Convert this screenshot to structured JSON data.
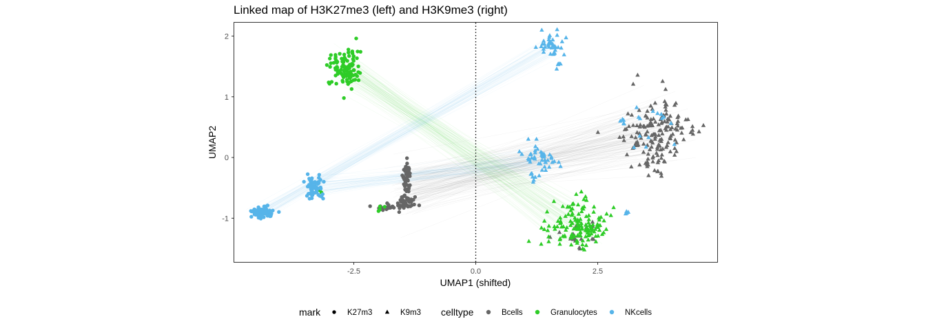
{
  "chart_data": {
    "type": "scatter",
    "title": "Linked map of H3K27me3 (left) and H3K9me3 (right)",
    "xlabel": "UMAP1 (shifted)",
    "ylabel": "UMAP2",
    "xlim": [
      -4.95,
      4.95
    ],
    "ylim": [
      -1.72,
      2.22
    ],
    "x_ticks": [
      -2.5,
      0.0,
      2.5
    ],
    "x_tick_labels": [
      "-2.5",
      "0.0",
      "2.5"
    ],
    "y_ticks": [
      -1,
      0,
      1,
      2
    ],
    "y_tick_labels": [
      "-1",
      "0",
      "1",
      "2"
    ],
    "vline": {
      "x": 0,
      "style": "dotted"
    },
    "grid": false,
    "legend_position": "bottom",
    "legends": [
      {
        "title": "mark",
        "entries": [
          {
            "label": "K27m3",
            "shape": "circle"
          },
          {
            "label": "K9m3",
            "shape": "triangle"
          }
        ]
      },
      {
        "title": "celltype",
        "entries": [
          {
            "label": "Bcells",
            "color": "#666666"
          },
          {
            "label": "Granulocytes",
            "color": "#2ecc27"
          },
          {
            "label": "NKcells",
            "color": "#56b4e9"
          }
        ]
      }
    ],
    "colors": {
      "Bcells": "#666666",
      "Granulocytes": "#2ecc27",
      "NKcells": "#56b4e9"
    },
    "series": [
      {
        "celltype": "Bcells",
        "mark": "K27m3",
        "clusters": [
          {
            "center": [
              -1.42,
              -0.35
            ],
            "spread": [
              0.06,
              0.14
            ],
            "n": 45
          },
          {
            "center": [
              -1.45,
              -0.75
            ],
            "spread": [
              0.11,
              0.06
            ],
            "n": 45
          },
          {
            "center": [
              -1.85,
              -0.82
            ],
            "spread": [
              0.12,
              0.03
            ],
            "n": 20
          }
        ]
      },
      {
        "celltype": "Bcells",
        "mark": "K9m3",
        "clusters": [
          {
            "center": [
              3.75,
              0.42
            ],
            "spread": [
              0.34,
              0.28
            ],
            "n": 160
          },
          {
            "center": [
              3.5,
              -0.12
            ],
            "spread": [
              0.12,
              0.05
            ],
            "n": 8
          },
          {
            "center": [
              2.05,
              -1.28
            ],
            "spread": [
              0.22,
              0.12
            ],
            "n": 18
          }
        ]
      },
      {
        "celltype": "Granulocytes",
        "mark": "K27m3",
        "clusters": [
          {
            "center": [
              -2.65,
              1.45
            ],
            "spread": [
              0.15,
              0.15
            ],
            "n": 110
          },
          {
            "center": [
              -1.95,
              -0.82
            ],
            "spread": [
              0.04,
              0.04
            ],
            "n": 4
          },
          {
            "center": [
              -3.18,
              -0.55
            ],
            "spread": [
              0.04,
              0.03
            ],
            "n": 3
          }
        ]
      },
      {
        "celltype": "Granulocytes",
        "mark": "K9m3",
        "clusters": [
          {
            "center": [
              2.05,
              -1.15
            ],
            "spread": [
              0.32,
              0.2
            ],
            "n": 140
          },
          {
            "center": [
              2.15,
              -0.75
            ],
            "spread": [
              0.08,
              0.08
            ],
            "n": 6
          }
        ]
      },
      {
        "celltype": "NKcells",
        "mark": "K27m3",
        "clusters": [
          {
            "center": [
              -4.38,
              -0.9
            ],
            "spread": [
              0.11,
              0.05
            ],
            "n": 75
          },
          {
            "center": [
              -3.32,
              -0.5
            ],
            "spread": [
              0.1,
              0.09
            ],
            "n": 55
          }
        ]
      },
      {
        "celltype": "NKcells",
        "mark": "K9m3",
        "clusters": [
          {
            "center": [
              1.55,
              1.85
            ],
            "spread": [
              0.12,
              0.09
            ],
            "n": 40
          },
          {
            "center": [
              1.7,
              1.55
            ],
            "spread": [
              0.03,
              0.05
            ],
            "n": 5
          },
          {
            "center": [
              1.32,
              -0.05
            ],
            "spread": [
              0.16,
              0.14
            ],
            "n": 50
          },
          {
            "center": [
              3.72,
              0.5
            ],
            "spread": [
              0.25,
              0.22
            ],
            "n": 14
          },
          {
            "center": [
              2.92,
              0.58
            ],
            "spread": [
              0.1,
              0.02
            ],
            "n": 5
          },
          {
            "center": [
              3.12,
              -0.9
            ],
            "spread": [
              0.07,
              0.02
            ],
            "n": 4
          }
        ]
      }
    ],
    "links": [
      {
        "celltype": "Bcells",
        "from_center": [
          -1.45,
          -0.55
        ],
        "from_spread": [
          0.15,
          0.2
        ],
        "to_center": [
          3.75,
          0.42
        ],
        "to_spread": [
          0.3,
          0.25
        ],
        "n": 140
      },
      {
        "celltype": "Granulocytes",
        "from_center": [
          -2.65,
          1.45
        ],
        "from_spread": [
          0.12,
          0.12
        ],
        "to_center": [
          2.05,
          -1.15
        ],
        "to_spread": [
          0.3,
          0.18
        ],
        "n": 110
      },
      {
        "celltype": "NKcells",
        "from_center": [
          -4.38,
          -0.9
        ],
        "from_spread": [
          0.1,
          0.05
        ],
        "to_center": [
          1.55,
          1.85
        ],
        "to_spread": [
          0.1,
          0.08
        ],
        "n": 60
      },
      {
        "celltype": "NKcells",
        "from_center": [
          -3.32,
          -0.5
        ],
        "from_spread": [
          0.1,
          0.08
        ],
        "to_center": [
          1.32,
          -0.05
        ],
        "to_spread": [
          0.15,
          0.12
        ],
        "n": 50
      }
    ]
  }
}
